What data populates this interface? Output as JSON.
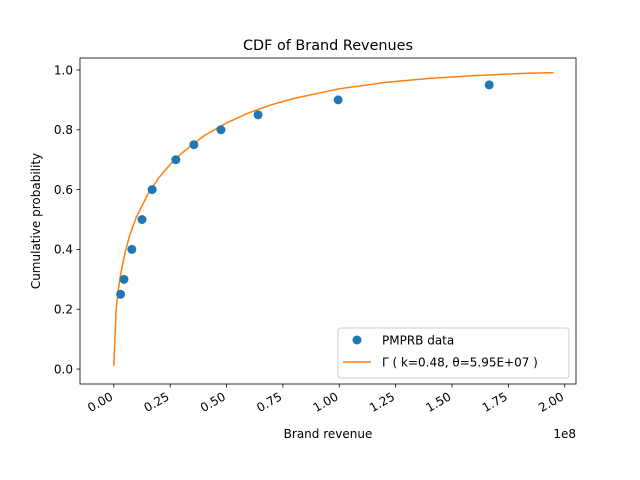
{
  "chart_data": {
    "type": "scatter",
    "title": "CDF of Brand Revenues",
    "xlabel": "Brand revenue",
    "ylabel": "Cumulative probability",
    "x_offset_label": "1e8",
    "xlim": [
      -0.15,
      2.05
    ],
    "ylim": [
      -0.05,
      1.04
    ],
    "x_ticks": [
      0.0,
      0.25,
      0.5,
      0.75,
      1.0,
      1.25,
      1.5,
      1.75,
      2.0
    ],
    "x_tick_labels": [
      "0.00",
      "0.25",
      "0.50",
      "0.75",
      "1.00",
      "1.25",
      "1.50",
      "1.75",
      "2.00"
    ],
    "y_ticks": [
      0.0,
      0.2,
      0.4,
      0.6,
      0.8,
      1.0
    ],
    "y_tick_labels": [
      "0.0",
      "0.2",
      "0.4",
      "0.6",
      "0.8",
      "1.0"
    ],
    "grid": false,
    "legend_position": "lower-right",
    "series": [
      {
        "name": "PMPRB data",
        "kind": "scatter",
        "color": "#1f77b4",
        "x": [
          0.03,
          0.045,
          0.08,
          0.125,
          0.17,
          0.275,
          0.355,
          0.475,
          0.64,
          0.995,
          1.665
        ],
        "y": [
          0.25,
          0.3,
          0.4,
          0.5,
          0.6,
          0.7,
          0.75,
          0.8,
          0.85,
          0.9,
          0.95
        ]
      },
      {
        "name": "Γ ( k=0.48, θ=5.95E+07 )",
        "kind": "line",
        "color": "#ff7f0e",
        "x": [
          0.0,
          0.01,
          0.02,
          0.03,
          0.05,
          0.07,
          0.1,
          0.15,
          0.2,
          0.25,
          0.3,
          0.4,
          0.5,
          0.6,
          0.7,
          0.8,
          1.0,
          1.2,
          1.4,
          1.6,
          1.8,
          1.95
        ],
        "y": [
          0.01,
          0.196,
          0.266,
          0.316,
          0.39,
          0.446,
          0.508,
          0.583,
          0.64,
          0.684,
          0.721,
          0.78,
          0.823,
          0.857,
          0.884,
          0.905,
          0.937,
          0.958,
          0.972,
          0.981,
          0.988,
          0.991
        ]
      }
    ]
  }
}
